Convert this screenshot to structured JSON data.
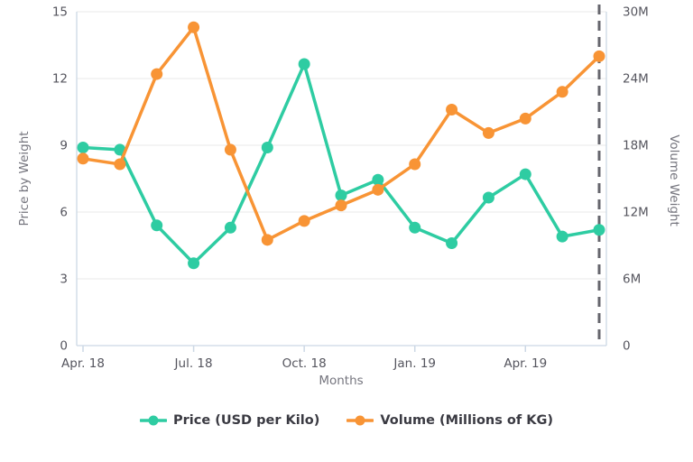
{
  "chart": {
    "left_axis": {
      "title": "Price by Weight",
      "ticks": [
        "15",
        "12",
        "9",
        "6",
        "3",
        "0"
      ]
    },
    "right_axis": {
      "title": "Volume Weight",
      "ticks": [
        "30M",
        "24M",
        "18M",
        "12M",
        "6M",
        "0"
      ]
    },
    "x_axis": {
      "title": "Months",
      "tick_labels": [
        "Apr. 18",
        "Jul. 18",
        "Oct. 18",
        "Jan. 19",
        "Apr. 19"
      ],
      "tick_indices": [
        0,
        3,
        6,
        9,
        12
      ]
    },
    "colors": {
      "price": "#2ecca2",
      "volume": "#f89435",
      "grid": "#e8e8ea",
      "axis_line": "#ccd8e5",
      "dashed_line": "#66666d",
      "tick_text": "#55555e",
      "axis_title_text": "#75757e",
      "legend_text": "#3a3a42"
    }
  },
  "chart_data": {
    "type": "line",
    "x": [
      "Apr. 18",
      "May. 18",
      "Jun. 18",
      "Jul. 18",
      "Aug. 18",
      "Sep. 18",
      "Oct. 18",
      "Nov. 18",
      "Dec. 18",
      "Jan. 19",
      "Feb. 19",
      "Mar. 19",
      "Apr. 19",
      "May. 19",
      "Jun. 19"
    ],
    "series": [
      {
        "name": "Price (USD per Kilo)",
        "axis": "left",
        "color": "#2ecca2",
        "values": [
          8.9,
          8.8,
          5.4,
          3.7,
          5.3,
          8.9,
          12.65,
          6.75,
          7.45,
          5.3,
          4.6,
          6.65,
          7.7,
          4.9,
          5.2
        ]
      },
      {
        "name": "Volume (Millions of KG)",
        "axis": "right",
        "color": "#f89435",
        "values": [
          16.8,
          16.3,
          24.4,
          28.6,
          17.6,
          9.5,
          11.2,
          12.6,
          14.0,
          16.3,
          21.2,
          19.1,
          20.4,
          22.8,
          26.0
        ]
      }
    ],
    "title": "",
    "xlabel": "Months",
    "ylabel_left": "Price by Weight",
    "ylabel_right": "Volume Weight",
    "ylim_left": [
      0,
      15
    ],
    "ylim_right": [
      0,
      30
    ],
    "grid": "horizontal",
    "legend_position": "bottom",
    "annotation": {
      "type": "dashed-vertical-line",
      "x_index": 14
    }
  },
  "legend": {
    "items": [
      {
        "label": "Price (USD per Kilo)",
        "color": "#2ecca2"
      },
      {
        "label": "Volume (Millions of KG)",
        "color": "#f89435"
      }
    ]
  }
}
